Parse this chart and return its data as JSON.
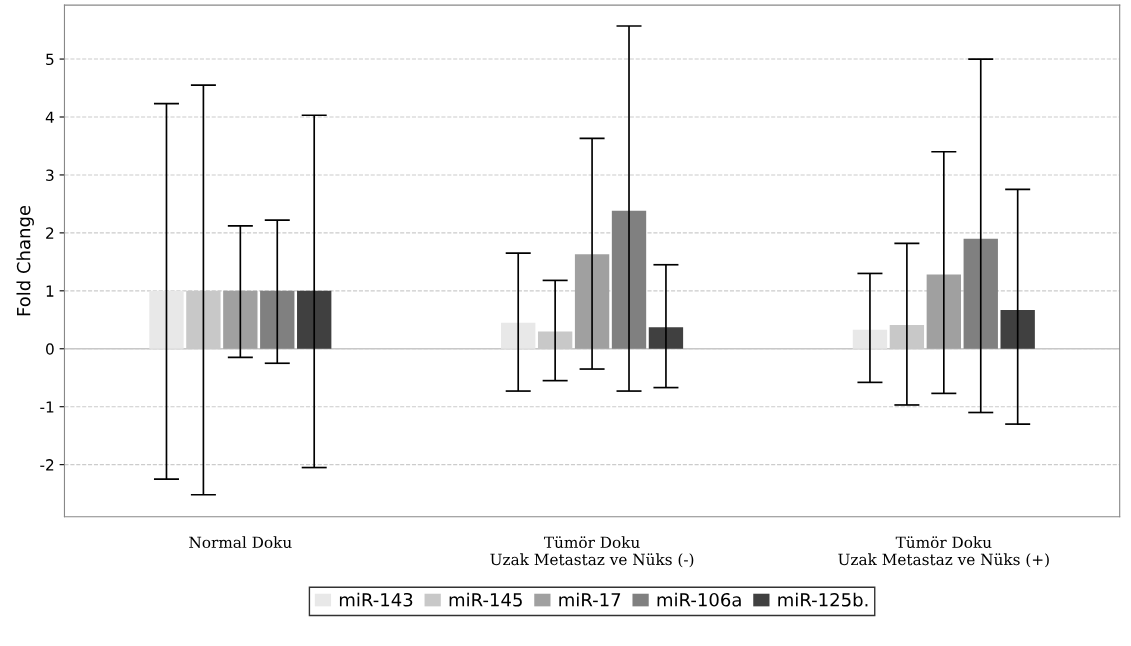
{
  "chart_data": {
    "type": "bar",
    "ylabel": "Fold Change",
    "categories": [
      "Normal Doku",
      "Tümör Doku\nUzak Metastaz ve Nüks (-)",
      "Tümör Doku\nUzak Metastaz ve Nüks (+)"
    ],
    "series": [
      {
        "name": "miR-143",
        "color": "#e8e8e8",
        "values": [
          1.0,
          0.45,
          0.33
        ],
        "errors": [
          [
            -2.25,
            4.23
          ],
          [
            -0.73,
            1.65
          ],
          [
            -0.58,
            1.3
          ]
        ]
      },
      {
        "name": "miR-145",
        "color": "#c8c8c8",
        "values": [
          1.0,
          0.3,
          0.41
        ],
        "errors": [
          [
            -2.52,
            4.55
          ],
          [
            -0.55,
            1.18
          ],
          [
            -0.97,
            1.82
          ]
        ]
      },
      {
        "name": "miR-17",
        "color": "#a0a0a0",
        "values": [
          1.0,
          1.63,
          1.28
        ],
        "errors": [
          [
            -0.15,
            2.12
          ],
          [
            -0.35,
            3.63
          ],
          [
            -0.77,
            3.4
          ]
        ]
      },
      {
        "name": "miR-106a",
        "color": "#808080",
        "values": [
          1.0,
          2.38,
          1.9
        ],
        "errors": [
          [
            -0.25,
            2.22
          ],
          [
            -0.73,
            5.57
          ],
          [
            -1.1,
            5.0
          ]
        ]
      },
      {
        "name": "miR-125b.",
        "color": "#404040",
        "values": [
          1.0,
          0.37,
          0.67
        ],
        "errors": [
          [
            -2.05,
            4.03
          ],
          [
            -0.67,
            1.45
          ],
          [
            -1.3,
            2.75
          ]
        ]
      }
    ],
    "ylim": [
      -2.9,
      5.93
    ],
    "yticks": [
      -2,
      -1,
      0,
      1,
      2,
      3,
      4,
      5
    ],
    "grid": "y",
    "legend": "bottom",
    "ref_lines": [
      {
        "axis": "y",
        "value": 0,
        "color": "#c8c8c8"
      }
    ]
  }
}
